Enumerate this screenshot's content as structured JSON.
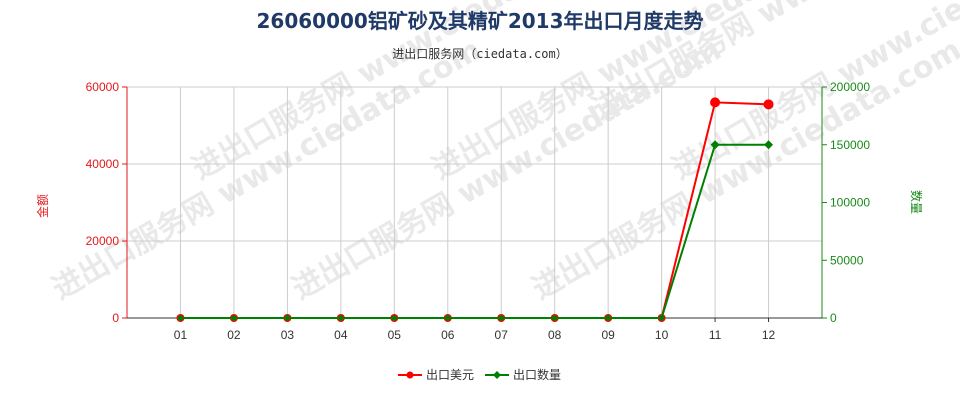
{
  "title": "26060000铝矿砂及其精矿2013年出口月度走势",
  "subtitle": "进出口服务网（ciedata.com）",
  "watermark": "进出口服务网 www.ciedata.com",
  "colors": {
    "left_axis": "#e31a1c",
    "right_axis": "#1a8a1a",
    "grid": "#cccccc",
    "series_usd": "#ff0000",
    "series_qty": "#008000",
    "title": "#1f3a67"
  },
  "chart_data": {
    "type": "line",
    "categories": [
      "01",
      "02",
      "03",
      "04",
      "05",
      "06",
      "07",
      "08",
      "09",
      "10",
      "11",
      "12"
    ],
    "y_left": {
      "label": "金额",
      "min": 0,
      "max": 60000,
      "ticks": [
        0,
        20000,
        40000,
        60000
      ]
    },
    "y_right": {
      "label": "数量",
      "min": 0,
      "max": 200000,
      "ticks": [
        0,
        50000,
        100000,
        150000,
        200000
      ]
    },
    "series": [
      {
        "name": "出口美元",
        "axis": "left",
        "color": "#ff0000",
        "marker": "circle",
        "values": [
          0,
          0,
          0,
          0,
          0,
          0,
          0,
          0,
          0,
          0,
          56000,
          55500
        ]
      },
      {
        "name": "出口数量",
        "axis": "right",
        "color": "#008000",
        "marker": "diamond",
        "values": [
          0,
          0,
          0,
          0,
          0,
          0,
          0,
          0,
          0,
          0,
          150000,
          150000
        ]
      }
    ],
    "grid": true,
    "legend_position": "bottom-center"
  }
}
